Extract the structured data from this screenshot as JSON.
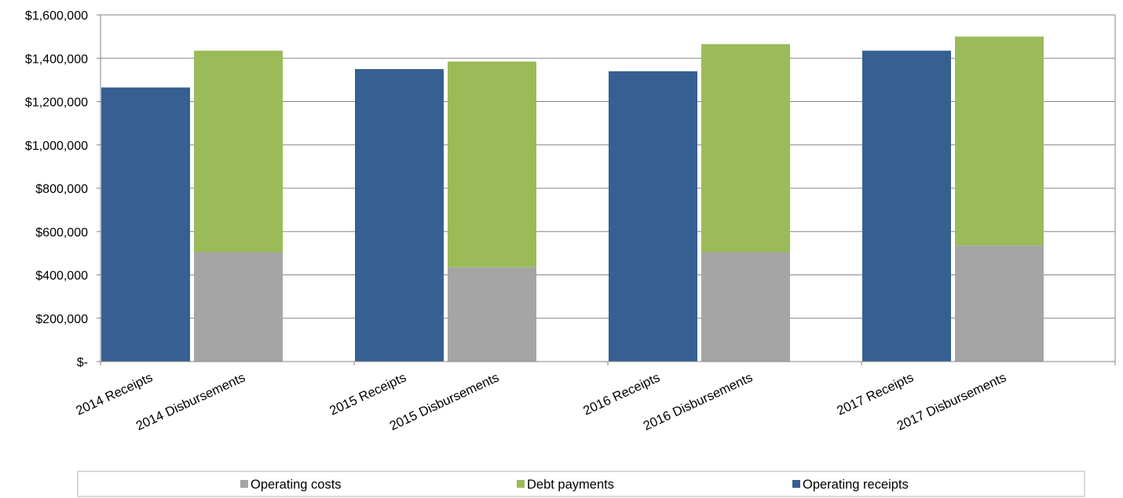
{
  "chart_data": {
    "type": "bar",
    "stacked": true,
    "categories": [
      "2014 Receipts",
      "2014 Disbursements",
      "2015 Receipts",
      "2015 Disbursements",
      "2016 Receipts",
      "2016 Disbursements",
      "2017 Receipts",
      "2017 Disbursements"
    ],
    "series": [
      {
        "name": "Operating costs",
        "color": "#a5a5a5",
        "values": [
          0,
          505000,
          0,
          435000,
          0,
          505000,
          0,
          535000
        ]
      },
      {
        "name": "Debt payments",
        "color": "#9bbb59",
        "values": [
          0,
          930000,
          0,
          950000,
          0,
          960000,
          0,
          965000
        ]
      },
      {
        "name": "Operating receipts",
        "color": "#366092",
        "values": [
          1265000,
          0,
          1350000,
          0,
          1340000,
          0,
          1435000,
          0
        ]
      }
    ],
    "ylim": [
      0,
      1600000
    ],
    "yticks": [
      0,
      200000,
      400000,
      600000,
      800000,
      1000000,
      1200000,
      1400000,
      1600000
    ],
    "ytick_labels": [
      "$-",
      "$200,000",
      "$400,000",
      "$600,000",
      "$800,000",
      "$1,000,000",
      "$1,200,000",
      "$1,400,000",
      "$1,600,000"
    ],
    "grid": true,
    "legend_position": "bottom",
    "legend_order": [
      "Operating costs",
      "Debt payments",
      "Operating receipts"
    ]
  }
}
